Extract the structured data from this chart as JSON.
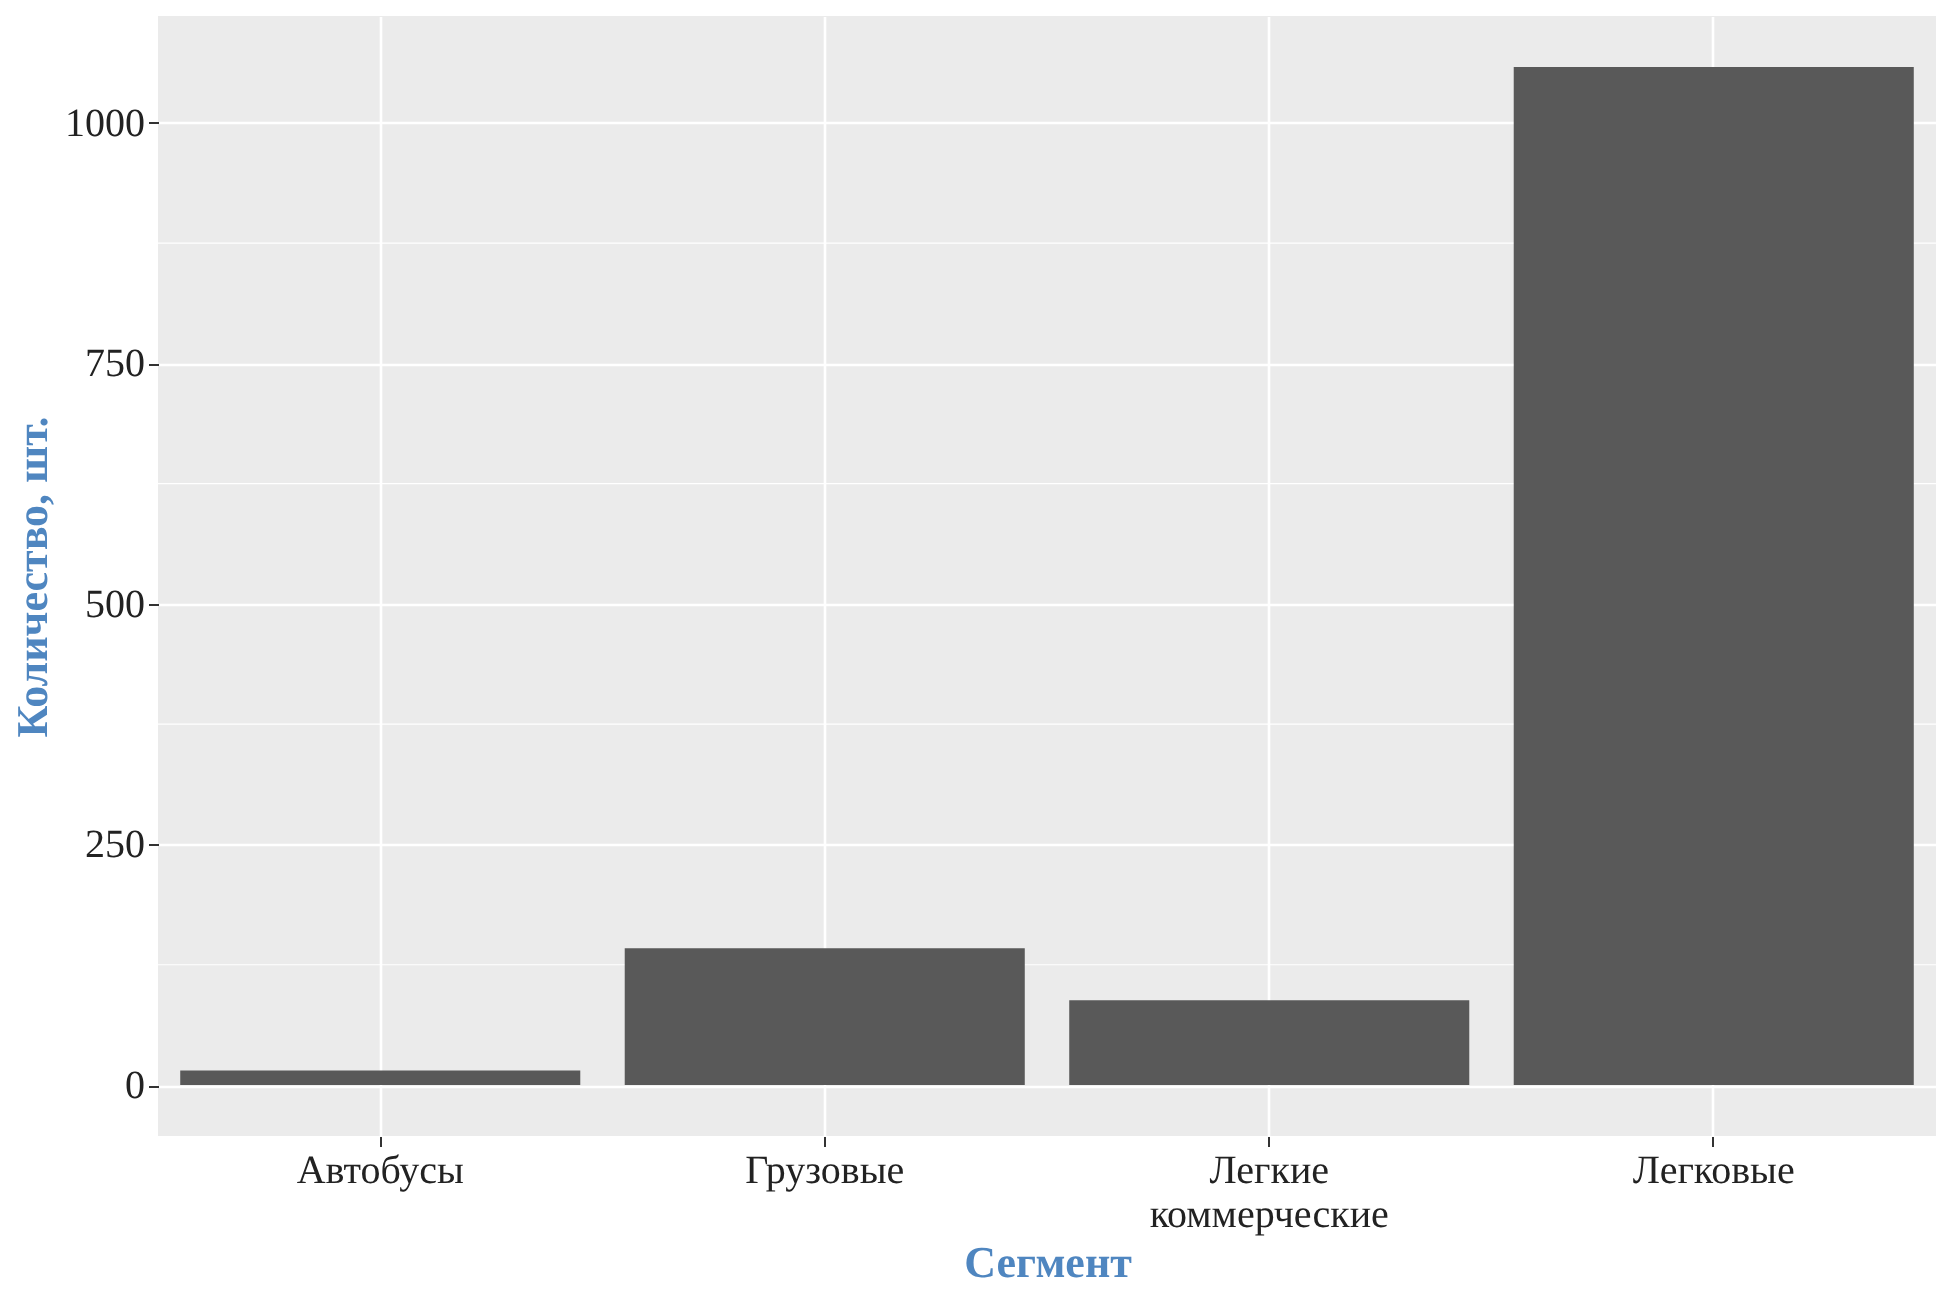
{
  "chart_data": {
    "type": "bar",
    "xlabel": "Сегмент",
    "ylabel": "Количество, шт.",
    "categories": [
      "Автобусы",
      "Грузовые",
      "Легкие коммерческие",
      "Легковые"
    ],
    "values": [
      15,
      142,
      88,
      1058
    ],
    "color": "#595959",
    "ylim": [
      -53,
      1111
    ],
    "yticks": [
      0,
      250,
      500,
      750,
      1000
    ],
    "grid": true
  }
}
